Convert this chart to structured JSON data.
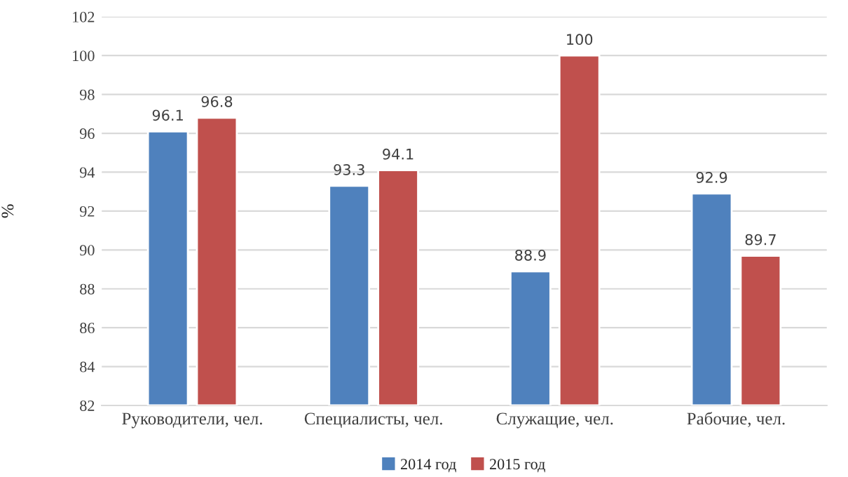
{
  "chart_data": {
    "type": "bar",
    "ylabel": "%",
    "categories": [
      "Руководители, чел.",
      "Специалисты, чел.",
      "Служащие, чел.",
      "Рабочие, чел."
    ],
    "series": [
      {
        "name": "2014 год",
        "color": "#4f81bd",
        "values": [
          96.1,
          93.3,
          88.9,
          92.9
        ]
      },
      {
        "name": "2015 год",
        "color": "#c0504d",
        "values": [
          96.8,
          94.1,
          100,
          89.7
        ]
      }
    ],
    "ylim": [
      82,
      102
    ],
    "yticks": [
      82,
      84,
      86,
      88,
      90,
      92,
      94,
      96,
      98,
      100,
      102
    ],
    "grid": "y",
    "legend": "bottom",
    "data_labels": true
  }
}
